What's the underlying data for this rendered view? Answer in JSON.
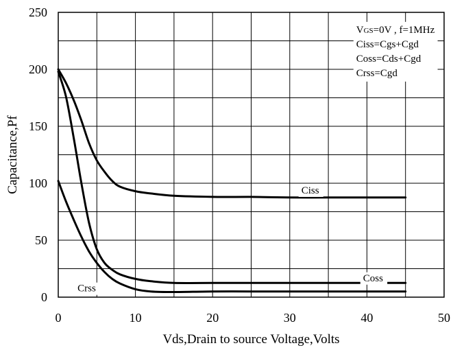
{
  "chart_data": {
    "type": "line",
    "title": "",
    "xlabel": "Vds,Drain to source Voltage,Volts",
    "ylabel": "Capacitance,Pf",
    "xlim": [
      0,
      50
    ],
    "ylim": [
      0,
      250
    ],
    "xticks": [
      "0",
      "10",
      "20",
      "30",
      "40",
      "50"
    ],
    "yticks": [
      "0",
      "50",
      "100",
      "150",
      "200",
      "250"
    ],
    "grid": true,
    "legend_lines": [
      {
        "prefix": "V",
        "sub": "GS",
        "suffix": "=0V , f=1MHz"
      },
      {
        "prefix": "Ciss=Cgs+Cgd",
        "sub": "",
        "suffix": ""
      },
      {
        "prefix": "Coss=Cds+Cgd",
        "sub": "",
        "suffix": ""
      },
      {
        "prefix": "Crss=Cgd",
        "sub": "",
        "suffix": ""
      }
    ],
    "series": [
      {
        "name": "Ciss",
        "x": [
          0,
          1,
          2,
          3,
          4,
          5,
          6,
          7,
          8,
          10,
          12,
          15,
          20,
          25,
          30,
          35,
          40,
          45
        ],
        "y": [
          200,
          188,
          173,
          155,
          135,
          120,
          110,
          102,
          97,
          93,
          91,
          89,
          88,
          88,
          87.5,
          87.5,
          87.5,
          87.5
        ]
      },
      {
        "name": "Coss",
        "x": [
          0,
          1,
          2,
          3,
          4,
          5,
          6,
          7,
          8,
          10,
          12,
          15,
          20,
          25,
          30,
          35,
          40,
          45
        ],
        "y": [
          198,
          176,
          140,
          100,
          65,
          42,
          30,
          24,
          20,
          16,
          14,
          12.5,
          12.5,
          12.5,
          12.5,
          12.5,
          12.5,
          12.5
        ]
      },
      {
        "name": "Crss",
        "x": [
          0,
          1,
          2,
          3,
          4,
          5,
          6,
          7,
          8,
          10,
          12,
          15,
          20,
          25,
          30,
          35,
          40,
          45
        ],
        "y": [
          102,
          84,
          68,
          53,
          40,
          30,
          22,
          16,
          12,
          7,
          5,
          4.5,
          5,
          5,
          5,
          5,
          5,
          5
        ]
      }
    ],
    "series_labels": [
      {
        "text": "Ciss",
        "x": 31.5,
        "y": 91
      },
      {
        "text": "Coss",
        "x": 39.5,
        "y": 14
      },
      {
        "text": "Crss",
        "x": 2.5,
        "y": 5
      }
    ]
  }
}
